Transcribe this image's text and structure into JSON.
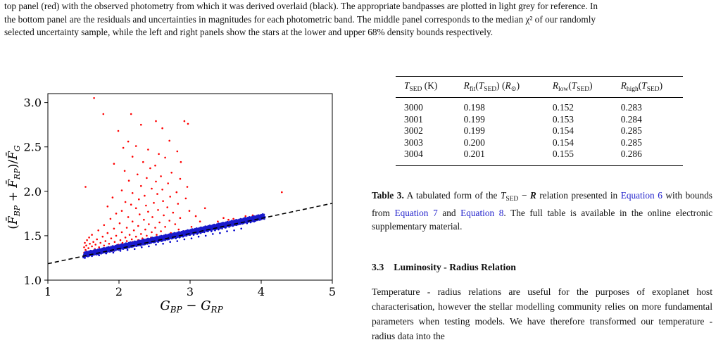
{
  "caption_top": {
    "line1": "top panel (red) with the observed photometry from which it was derived overlaid (black). The appropriate bandpasses are plotted in light grey for reference. In",
    "line2": "the bottom panel are the residuals and uncertainties in magnitudes for each photometric band. The middle panel corresponds to the median χ² of our randomly",
    "line3": "selected uncertainty sample, while the left and right panels show the stars at the lower and upper 68% density bounds respectively."
  },
  "chart_data": {
    "type": "scatter",
    "xlabel": "G_BP − G_RP",
    "ylabel": "(F̄_BP + F̄_RP)/F̄_G",
    "xlim": [
      1,
      5
    ],
    "ylim": [
      1.0,
      3.1
    ],
    "xticks": [
      "1",
      "2",
      "3",
      "4",
      "5"
    ],
    "yticks": [
      "1.0",
      "1.5",
      "2.0",
      "2.5",
      "3.0"
    ],
    "fit_line": {
      "x": [
        1.0,
        5.0
      ],
      "y": [
        1.185,
        1.865
      ],
      "style": "dashed"
    },
    "series": [
      {
        "color": "#ff0000",
        "marker": "dot",
        "points": [
          [
            1.65,
            3.05
          ],
          [
            1.78,
            2.87
          ],
          [
            2.17,
            2.87
          ],
          [
            2.52,
            2.79
          ],
          [
            2.92,
            2.79
          ],
          [
            2.97,
            2.76
          ],
          [
            2.31,
            2.75
          ],
          [
            2.61,
            2.71
          ],
          [
            1.99,
            2.68
          ],
          [
            2.13,
            2.56
          ],
          [
            2.71,
            2.57
          ],
          [
            2.24,
            2.51
          ],
          [
            2.06,
            2.49
          ],
          [
            2.41,
            2.47
          ],
          [
            2.56,
            2.42
          ],
          [
            2.82,
            2.45
          ],
          [
            2.19,
            2.39
          ],
          [
            2.65,
            2.38
          ],
          [
            2.34,
            2.33
          ],
          [
            2.87,
            2.33
          ],
          [
            1.93,
            2.31
          ],
          [
            2.51,
            2.29
          ],
          [
            2.44,
            2.26
          ],
          [
            2.08,
            2.23
          ],
          [
            2.74,
            2.21
          ],
          [
            2.26,
            2.19
          ],
          [
            2.59,
            2.17
          ],
          [
            2.39,
            2.15
          ],
          [
            2.86,
            2.14
          ],
          [
            2.14,
            2.12
          ],
          [
            2.52,
            2.11
          ],
          [
            2.69,
            2.09
          ],
          [
            1.53,
            2.05
          ],
          [
            2.31,
            2.06
          ],
          [
            2.96,
            2.05
          ],
          [
            2.46,
            2.03
          ],
          [
            2.61,
            2.02
          ],
          [
            2.04,
            2.01
          ],
          [
            2.81,
            1.99
          ],
          [
            2.19,
            1.98
          ],
          [
            2.54,
            1.97
          ],
          [
            4.29,
            1.99
          ],
          [
            2.36,
            1.95
          ],
          [
            2.72,
            1.94
          ],
          [
            1.91,
            1.93
          ],
          [
            2.94,
            1.92
          ],
          [
            2.28,
            1.91
          ],
          [
            2.62,
            1.89
          ],
          [
            2.09,
            1.88
          ],
          [
            2.49,
            1.87
          ],
          [
            2.83,
            1.86
          ],
          [
            2.17,
            1.85
          ],
          [
            2.38,
            1.84
          ],
          [
            1.84,
            1.83
          ],
          [
            2.68,
            1.82
          ],
          [
            3.21,
            1.81
          ],
          [
            2.24,
            1.81
          ],
          [
            2.55,
            1.79
          ],
          [
            2.99,
            1.78
          ],
          [
            2.04,
            1.78
          ],
          [
            2.41,
            1.77
          ],
          [
            2.76,
            1.76
          ],
          [
            1.96,
            1.75
          ],
          [
            2.29,
            1.74
          ],
          [
            2.63,
            1.73
          ],
          [
            3.08,
            1.72
          ],
          [
            2.13,
            1.71
          ],
          [
            2.47,
            1.71
          ],
          [
            2.86,
            1.7
          ],
          [
            1.88,
            1.69
          ],
          [
            2.35,
            1.68
          ],
          [
            2.71,
            1.67
          ],
          [
            2.19,
            1.66
          ],
          [
            2.57,
            1.65
          ],
          [
            3.14,
            1.66
          ],
          [
            2.01,
            1.64
          ],
          [
            2.42,
            1.63
          ],
          [
            2.79,
            1.63
          ],
          [
            1.79,
            1.62
          ],
          [
            2.27,
            1.61
          ],
          [
            2.65,
            1.6
          ],
          [
            3.02,
            1.6
          ],
          [
            2.11,
            1.59
          ],
          [
            2.51,
            1.59
          ],
          [
            1.93,
            1.58
          ],
          [
            2.37,
            1.57
          ],
          [
            2.84,
            1.57
          ],
          [
            1.71,
            1.56
          ],
          [
            2.21,
            1.56
          ],
          [
            2.59,
            1.55
          ],
          [
            3.27,
            1.58
          ],
          [
            2.04,
            1.54
          ],
          [
            2.46,
            1.54
          ],
          [
            2.92,
            1.55
          ],
          [
            1.84,
            1.53
          ],
          [
            2.31,
            1.52
          ],
          [
            2.73,
            1.53
          ],
          [
            1.62,
            1.51
          ],
          [
            2.15,
            1.51
          ],
          [
            2.53,
            1.51
          ],
          [
            1.96,
            1.5
          ],
          [
            2.39,
            1.5
          ],
          [
            3.05,
            1.52
          ],
          [
            1.77,
            1.49
          ],
          [
            2.24,
            1.49
          ],
          [
            2.64,
            1.5
          ],
          [
            1.58,
            1.48
          ],
          [
            2.09,
            1.48
          ],
          [
            2.45,
            1.48
          ],
          [
            1.89,
            1.47
          ],
          [
            2.33,
            1.47
          ],
          [
            2.81,
            1.49
          ],
          [
            1.69,
            1.46
          ],
          [
            2.18,
            1.46
          ],
          [
            1.55,
            1.45
          ],
          [
            2.02,
            1.45
          ],
          [
            2.56,
            1.47
          ],
          [
            1.81,
            1.44
          ],
          [
            2.27,
            1.45
          ],
          [
            1.64,
            1.43
          ],
          [
            2.11,
            1.44
          ],
          [
            1.52,
            1.42
          ],
          [
            1.94,
            1.43
          ],
          [
            2.42,
            1.45
          ],
          [
            1.74,
            1.42
          ],
          [
            2.19,
            1.43
          ],
          [
            1.59,
            1.41
          ],
          [
            2.05,
            1.42
          ],
          [
            1.86,
            1.41
          ],
          [
            2.35,
            1.44
          ],
          [
            1.67,
            1.4
          ],
          [
            2.14,
            1.41
          ],
          [
            1.54,
            1.39
          ],
          [
            1.99,
            1.4
          ],
          [
            1.79,
            1.39
          ],
          [
            2.26,
            1.42
          ],
          [
            1.62,
            1.38
          ],
          [
            2.08,
            1.39
          ],
          [
            1.51,
            1.37
          ],
          [
            1.92,
            1.38
          ],
          [
            1.72,
            1.37
          ],
          [
            2.17,
            1.39
          ],
          [
            1.57,
            1.36
          ],
          [
            2.01,
            1.38
          ],
          [
            1.84,
            1.36
          ],
          [
            1.66,
            1.35
          ],
          [
            2.12,
            1.38
          ],
          [
            1.53,
            1.34
          ],
          [
            1.95,
            1.36
          ],
          [
            1.76,
            1.35
          ],
          [
            1.61,
            1.33
          ],
          [
            2.04,
            1.36
          ],
          [
            1.87,
            1.35
          ],
          [
            1.69,
            1.33
          ],
          [
            1.55,
            1.32
          ],
          [
            1.98,
            1.35
          ],
          [
            1.79,
            1.33
          ],
          [
            1.64,
            1.32
          ],
          [
            1.51,
            1.31
          ],
          [
            1.91,
            1.33
          ],
          [
            1.73,
            1.32
          ],
          [
            1.59,
            1.3
          ],
          [
            1.83,
            1.32
          ],
          [
            1.67,
            1.31
          ],
          [
            1.54,
            1.29
          ],
          [
            1.77,
            1.31
          ],
          [
            1.62,
            1.29
          ],
          [
            1.71,
            1.3
          ],
          [
            1.57,
            1.28
          ],
          [
            1.66,
            1.29
          ],
          [
            3.47,
            1.7
          ],
          [
            3.61,
            1.69
          ],
          [
            3.39,
            1.66
          ],
          [
            3.78,
            1.72
          ],
          [
            3.54,
            1.68
          ],
          [
            3.88,
            1.73
          ]
        ]
      },
      {
        "color": "#0000cc",
        "marker": "dot",
        "points_band": "dense points along the dashed relation from x = 1.5 to 3.9",
        "points": [
          [
            1.5,
            1.27
          ],
          [
            1.55,
            1.28
          ],
          [
            1.6,
            1.29
          ],
          [
            1.65,
            1.29
          ],
          [
            1.7,
            1.3
          ],
          [
            1.75,
            1.31
          ],
          [
            1.8,
            1.32
          ],
          [
            1.85,
            1.33
          ],
          [
            1.9,
            1.33
          ],
          [
            1.95,
            1.34
          ],
          [
            2.0,
            1.35
          ],
          [
            2.05,
            1.36
          ],
          [
            2.1,
            1.36
          ],
          [
            2.15,
            1.37
          ],
          [
            2.2,
            1.38
          ],
          [
            2.25,
            1.39
          ],
          [
            2.3,
            1.39
          ],
          [
            2.35,
            1.4
          ],
          [
            2.4,
            1.41
          ],
          [
            2.45,
            1.42
          ],
          [
            2.5,
            1.43
          ],
          [
            2.55,
            1.43
          ],
          [
            2.6,
            1.44
          ],
          [
            2.65,
            1.45
          ],
          [
            2.7,
            1.46
          ],
          [
            2.75,
            1.47
          ],
          [
            2.8,
            1.47
          ],
          [
            2.85,
            1.48
          ],
          [
            2.9,
            1.49
          ],
          [
            2.95,
            1.5
          ],
          [
            3.0,
            1.51
          ],
          [
            3.05,
            1.51
          ],
          [
            3.1,
            1.52
          ],
          [
            3.15,
            1.53
          ],
          [
            3.2,
            1.54
          ],
          [
            3.25,
            1.55
          ],
          [
            3.3,
            1.55
          ],
          [
            3.35,
            1.56
          ],
          [
            3.4,
            1.57
          ],
          [
            3.45,
            1.58
          ],
          [
            3.5,
            1.59
          ],
          [
            3.55,
            1.6
          ],
          [
            3.6,
            1.61
          ],
          [
            3.65,
            1.62
          ],
          [
            3.7,
            1.63
          ],
          [
            3.75,
            1.64
          ],
          [
            3.8,
            1.64
          ],
          [
            3.85,
            1.65
          ],
          [
            3.9,
            1.66
          ],
          [
            1.52,
            1.25
          ],
          [
            1.62,
            1.27
          ],
          [
            1.72,
            1.28
          ],
          [
            1.82,
            1.3
          ],
          [
            1.92,
            1.31
          ],
          [
            2.02,
            1.33
          ],
          [
            2.12,
            1.34
          ],
          [
            2.22,
            1.35
          ],
          [
            2.32,
            1.37
          ],
          [
            2.42,
            1.38
          ],
          [
            2.52,
            1.4
          ],
          [
            2.62,
            1.41
          ],
          [
            2.72,
            1.43
          ],
          [
            2.82,
            1.44
          ],
          [
            2.92,
            1.46
          ],
          [
            3.02,
            1.47
          ],
          [
            3.12,
            1.49
          ],
          [
            3.22,
            1.5
          ],
          [
            3.32,
            1.52
          ],
          [
            3.42,
            1.53
          ],
          [
            3.52,
            1.55
          ],
          [
            3.62,
            1.56
          ],
          [
            3.72,
            1.58
          ],
          [
            1.57,
            1.3
          ],
          [
            1.67,
            1.31
          ],
          [
            1.77,
            1.33
          ],
          [
            1.87,
            1.34
          ],
          [
            1.97,
            1.36
          ],
          [
            2.07,
            1.37
          ],
          [
            2.17,
            1.39
          ],
          [
            2.27,
            1.4
          ],
          [
            2.37,
            1.42
          ],
          [
            2.47,
            1.44
          ],
          [
            2.57,
            1.45
          ],
          [
            2.67,
            1.47
          ],
          [
            2.77,
            1.48
          ],
          [
            2.87,
            1.5
          ],
          [
            2.97,
            1.52
          ],
          [
            3.07,
            1.53
          ],
          [
            3.17,
            1.55
          ],
          [
            3.27,
            1.57
          ],
          [
            3.37,
            1.58
          ],
          [
            3.47,
            1.6
          ],
          [
            3.57,
            1.62
          ],
          [
            3.67,
            1.63
          ],
          [
            3.77,
            1.65
          ],
          [
            3.96,
            1.68
          ],
          [
            3.99,
            1.69
          ],
          [
            4.02,
            1.7
          ],
          [
            4.05,
            1.71
          ]
        ]
      }
    ],
    "grid": false
  },
  "table3": {
    "headers": [
      "T_SED (K)",
      "R_fit(T_SED) (R_⊙)",
      "R_low(T_SED)",
      "R_high(T_SED)"
    ],
    "rows": [
      [
        "3000",
        "0.198",
        "0.152",
        "0.283"
      ],
      [
        "3001",
        "0.199",
        "0.153",
        "0.284"
      ],
      [
        "3002",
        "0.199",
        "0.154",
        "0.285"
      ],
      [
        "3003",
        "0.200",
        "0.154",
        "0.285"
      ],
      [
        "3004",
        "0.201",
        "0.155",
        "0.286"
      ]
    ]
  },
  "table3_caption": {
    "label": "Table 3.",
    "text_a": " A tabulated form of the ",
    "tsed": "T",
    "tsed_sub": "SED",
    "text_b": " − ",
    "r": "R",
    "text_c": " relation presented in ",
    "link1": "Equation 6",
    "text_d": " with bounds from ",
    "link2": "Equation 7",
    "text_e": " and ",
    "link3": "Equation 8",
    "text_f": ". The full table is available in the online electronic supplementary material."
  },
  "section": {
    "number": "3.3",
    "title": "Luminosity - Radius Relation",
    "body": "Temperature - radius relations are useful for the purposes of exoplanet host characterisation, however the stellar modelling community relies on more fundamental parameters when testing models. We have therefore transformed our temperature - radius data into the"
  }
}
